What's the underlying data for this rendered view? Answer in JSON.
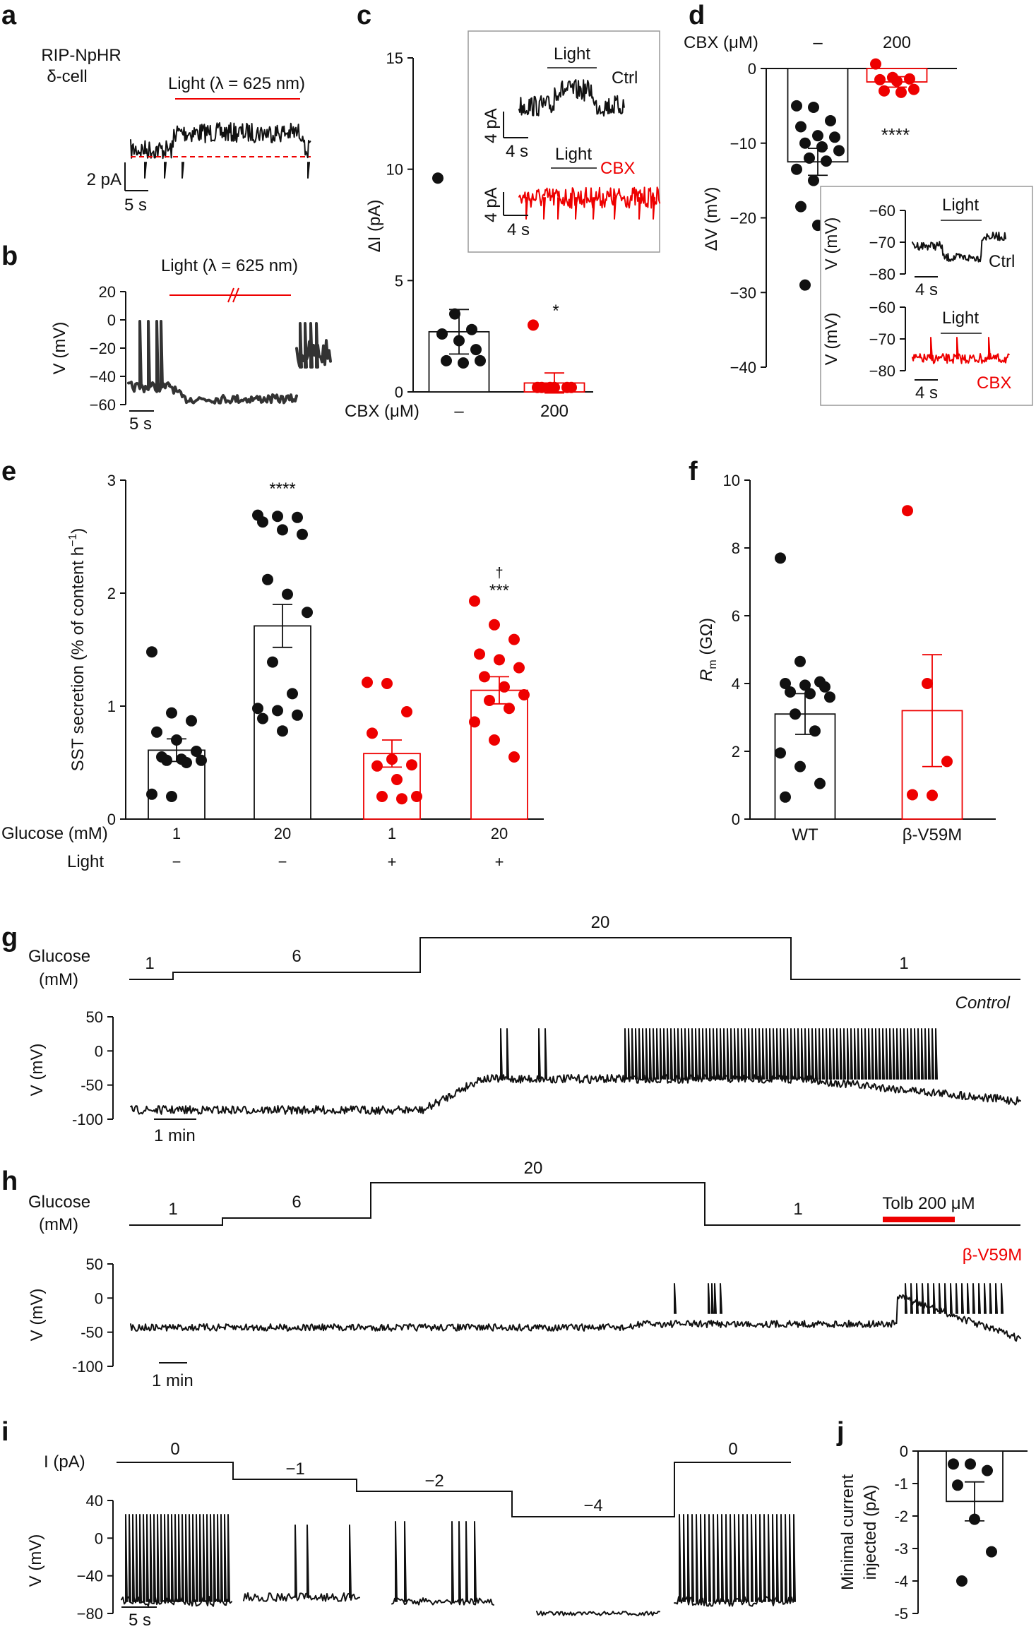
{
  "panel_letters": [
    "a",
    "b",
    "c",
    "d",
    "e",
    "f",
    "g",
    "h",
    "i",
    "j"
  ],
  "colors": {
    "black": "#111111",
    "red": "#ee0000",
    "trace_gray": "#222222"
  },
  "panel_a": {
    "title_line1": "RIP-NpHR",
    "title_line2": "δ-cell",
    "light_label": "Light (λ = 625 nm)",
    "scale_y": "2 pA",
    "scale_x": "5 s"
  },
  "panel_b": {
    "light_label": "Light (λ = 625 nm)",
    "ylabel": "V (mV)",
    "yticks": [
      "20",
      "0",
      "−20",
      "−40",
      "−60"
    ],
    "scale_x": "5 s"
  },
  "panel_c": {
    "ylabel": "ΔI (pA)",
    "xlabel": "CBX (μM)",
    "yticks": [
      "0",
      "5",
      "10",
      "15"
    ],
    "inset_light_1": "Light",
    "inset_ctrl": "Ctrl",
    "inset_light_2": "Light",
    "inset_cbx": "CBX",
    "inset_scale_y": "4 pA",
    "inset_scale_x": "4 s",
    "sig_cbx": "*"
  },
  "panel_d": {
    "xlabel": "CBX (μM)",
    "ylabel": "ΔV (mV)",
    "yticks": [
      "0",
      "−10",
      "−20",
      "−30",
      "−40"
    ],
    "sig_ctrl": "****",
    "inset_ylabel": "V (mV)",
    "inset_yticks_1": [
      "−60",
      "−70",
      "−80"
    ],
    "inset_yticks_2": [
      "−60",
      "−70",
      "−80"
    ],
    "inset_light": "Light",
    "inset_ctrl": "Ctrl",
    "inset_cbx": "CBX",
    "inset_scale_x": "4 s"
  },
  "panel_e": {
    "ylabel": "SST secretion (% of content h",
    "ylabel_sup": "−1",
    "ylabel_end": ")",
    "yticks": [
      "0",
      "1",
      "2",
      "3"
    ],
    "row1_label": "Glucose (mM)",
    "row2_label": "Light",
    "glucose": [
      "1",
      "20",
      "1",
      "20"
    ],
    "light": [
      "−",
      "−",
      "+",
      "+"
    ],
    "sig": [
      "",
      "****",
      "",
      "***"
    ],
    "dagger": "†"
  },
  "panel_f": {
    "ylabel_r": "R",
    "ylabel_sub": "m",
    "ylabel_unit": " (GΩ)",
    "yticks": [
      "0",
      "2",
      "4",
      "6",
      "8",
      "10"
    ],
    "categories": [
      "WT",
      "β-V59M"
    ]
  },
  "panel_g": {
    "glucose_label_1": "Glucose",
    "glucose_label_2": "(mM)",
    "steps": [
      "1",
      "6",
      "20",
      "1"
    ],
    "condition": "Control",
    "ylabel": "V (mV)",
    "yticks": [
      "50",
      "0",
      "-50",
      "-100"
    ],
    "scale_x": "1 min"
  },
  "panel_h": {
    "glucose_label_1": "Glucose",
    "glucose_label_2": "(mM)",
    "steps": [
      "1",
      "6",
      "20",
      "1"
    ],
    "tolb": "Tolb 200 μM",
    "condition": "β-V59M",
    "ylabel": "V (mV)",
    "yticks": [
      "50",
      "0",
      "-50",
      "-100"
    ],
    "scale_x": "1 min"
  },
  "panel_i": {
    "ilabel": "I (pA)",
    "steps": [
      "0",
      "−1",
      "−2",
      "−4",
      "0"
    ],
    "ylabel": "V (mV)",
    "yticks": [
      "40",
      "0",
      "−40",
      "−80"
    ],
    "scale_x": "5 s"
  },
  "panel_j": {
    "ylabel_1": "Minimal current",
    "ylabel_2": "injected (pA)",
    "yticks": [
      "0",
      "-1",
      "-2",
      "-3",
      "-4",
      "-5"
    ]
  },
  "chart_data": [
    {
      "panel": "c",
      "type": "bar",
      "categories": [
        "–",
        "200"
      ],
      "xlabel": "CBX (μM)",
      "ylabel": "ΔI (pA)",
      "ylim": [
        0,
        15
      ],
      "series": [
        {
          "values": [
            2.7,
            0.4
          ]
        }
      ],
      "error": [
        1.0,
        0.45
      ],
      "points": [
        [
          9.6,
          3.5,
          2.8,
          2.6,
          2.3,
          1.9,
          1.4,
          1.3,
          1.4
        ],
        [
          3.0,
          0.2,
          0.2,
          0.2,
          0.2,
          0.2,
          0.2
        ]
      ],
      "annotations": [
        "*"
      ]
    },
    {
      "panel": "d",
      "type": "bar",
      "categories": [
        "–",
        "200"
      ],
      "xlabel": "CBX (μM)",
      "ylabel": "ΔV (mV)",
      "ylim": [
        -40,
        0
      ],
      "series": [
        {
          "values": [
            -12.5,
            -1.8
          ]
        }
      ],
      "error": [
        1.8,
        0.7
      ],
      "points": [
        [
          -5,
          -5.2,
          -7,
          -7.8,
          -9,
          -9.2,
          -10,
          -10.5,
          -11,
          -12,
          -12.4,
          -13.5,
          -15,
          -17.8,
          -18.5,
          -21,
          -22,
          -29
        ],
        [
          0.6,
          -1.2,
          -1.4,
          -1.5,
          -1.7,
          -2.8,
          -3.0,
          -3.2
        ]
      ],
      "annotations": [
        "****"
      ]
    },
    {
      "panel": "e",
      "type": "bar",
      "categories": [
        "1 / –",
        "20 / –",
        "1 / +",
        "20 / +"
      ],
      "ylabel": "SST secretion (% of content h−1)",
      "ylim": [
        0,
        3
      ],
      "series": [
        {
          "values": [
            0.61,
            1.71,
            0.58,
            1.14
          ]
        }
      ],
      "error": [
        0.1,
        0.19,
        0.12,
        0.12
      ],
      "points": [
        [
          1.48,
          0.94,
          0.87,
          0.77,
          0.7,
          0.6,
          0.55,
          0.53,
          0.52,
          0.52,
          0.5,
          0.22,
          0.2
        ],
        [
          2.69,
          2.68,
          2.67,
          2.63,
          2.56,
          2.52,
          2.12,
          1.99,
          1.83,
          1.39,
          1.11,
          0.98,
          0.96,
          0.92,
          0.89,
          0.78
        ],
        [
          1.21,
          1.2,
          0.95,
          0.76,
          0.53,
          0.48,
          0.47,
          0.35,
          0.2,
          0.2,
          0.18
        ],
        [
          1.93,
          1.72,
          1.59,
          1.46,
          1.41,
          1.34,
          1.26,
          1.17,
          1.1,
          1.05,
          0.98,
          0.86,
          0.7,
          0.55
        ]
      ],
      "annotations": [
        "",
        "****",
        "",
        "†***"
      ]
    },
    {
      "panel": "f",
      "type": "bar",
      "categories": [
        "WT",
        "β-V59M"
      ],
      "ylabel": "Rm (GΩ)",
      "ylim": [
        0,
        10
      ],
      "series": [
        {
          "values": [
            3.1,
            3.2
          ]
        }
      ],
      "error": [
        0.6,
        1.65
      ],
      "points": [
        [
          7.7,
          4.65,
          4.05,
          4.0,
          3.95,
          3.9,
          3.75,
          3.7,
          3.6,
          3.1,
          2.6,
          1.95,
          1.55,
          1.05,
          0.65
        ],
        [
          9.1,
          4.0,
          1.7,
          0.72,
          0.7
        ]
      ]
    },
    {
      "panel": "j",
      "type": "bar",
      "categories": [
        ""
      ],
      "ylabel": "Minimal current injected (pA)",
      "ylim": [
        -5,
        0
      ],
      "series": [
        {
          "values": [
            -1.55
          ]
        }
      ],
      "error": [
        0.6
      ],
      "points": [
        [
          -0.4,
          -0.4,
          -0.6,
          -1.05,
          -2.1,
          -3.1,
          -4.0
        ]
      ]
    }
  ]
}
